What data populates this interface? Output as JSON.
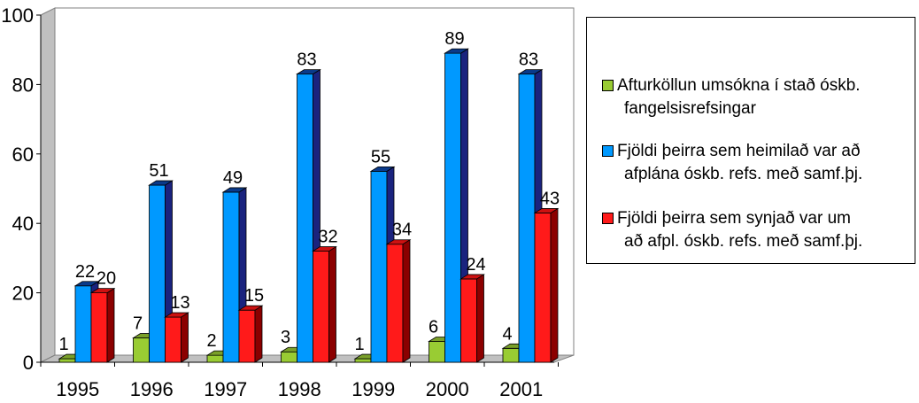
{
  "chart_data": {
    "type": "bar",
    "categories": [
      "1995",
      "1996",
      "1997",
      "1998",
      "1999",
      "2000",
      "2001"
    ],
    "series": [
      {
        "name": "Afturköllun umsókna í stað óskb. fangelsisrefsingar",
        "name_lines": [
          "Afturköllun umsókna í stað óskb.",
          "fangelsisrefsingar"
        ],
        "color": "#99cc33",
        "values": [
          1,
          7,
          2,
          3,
          1,
          6,
          4
        ]
      },
      {
        "name": "Fjöldi þeirra sem heimilað var að afplána óskb. refs. með samf.þj.",
        "name_lines": [
          "Fjöldi þeirra sem heimilað var að",
          "afplána óskb. refs. með samf.þj."
        ],
        "color": "#0099ff",
        "values": [
          22,
          51,
          49,
          83,
          55,
          89,
          83
        ]
      },
      {
        "name": "Fjöldi þeirra sem synjað var um að afpl. óskb. refs. með samf.þj.",
        "name_lines": [
          "Fjöldi þeirra sem synjað var um",
          "að afpl. óskb. refs. með samf.þj."
        ],
        "color": "#ff1a1a",
        "values": [
          20,
          13,
          15,
          32,
          34,
          24,
          43
        ]
      }
    ],
    "yticks": [
      "0",
      "20",
      "40",
      "60",
      "80",
      "100"
    ],
    "ylim": [
      0,
      100
    ],
    "grid": false,
    "legend_position": "right"
  }
}
